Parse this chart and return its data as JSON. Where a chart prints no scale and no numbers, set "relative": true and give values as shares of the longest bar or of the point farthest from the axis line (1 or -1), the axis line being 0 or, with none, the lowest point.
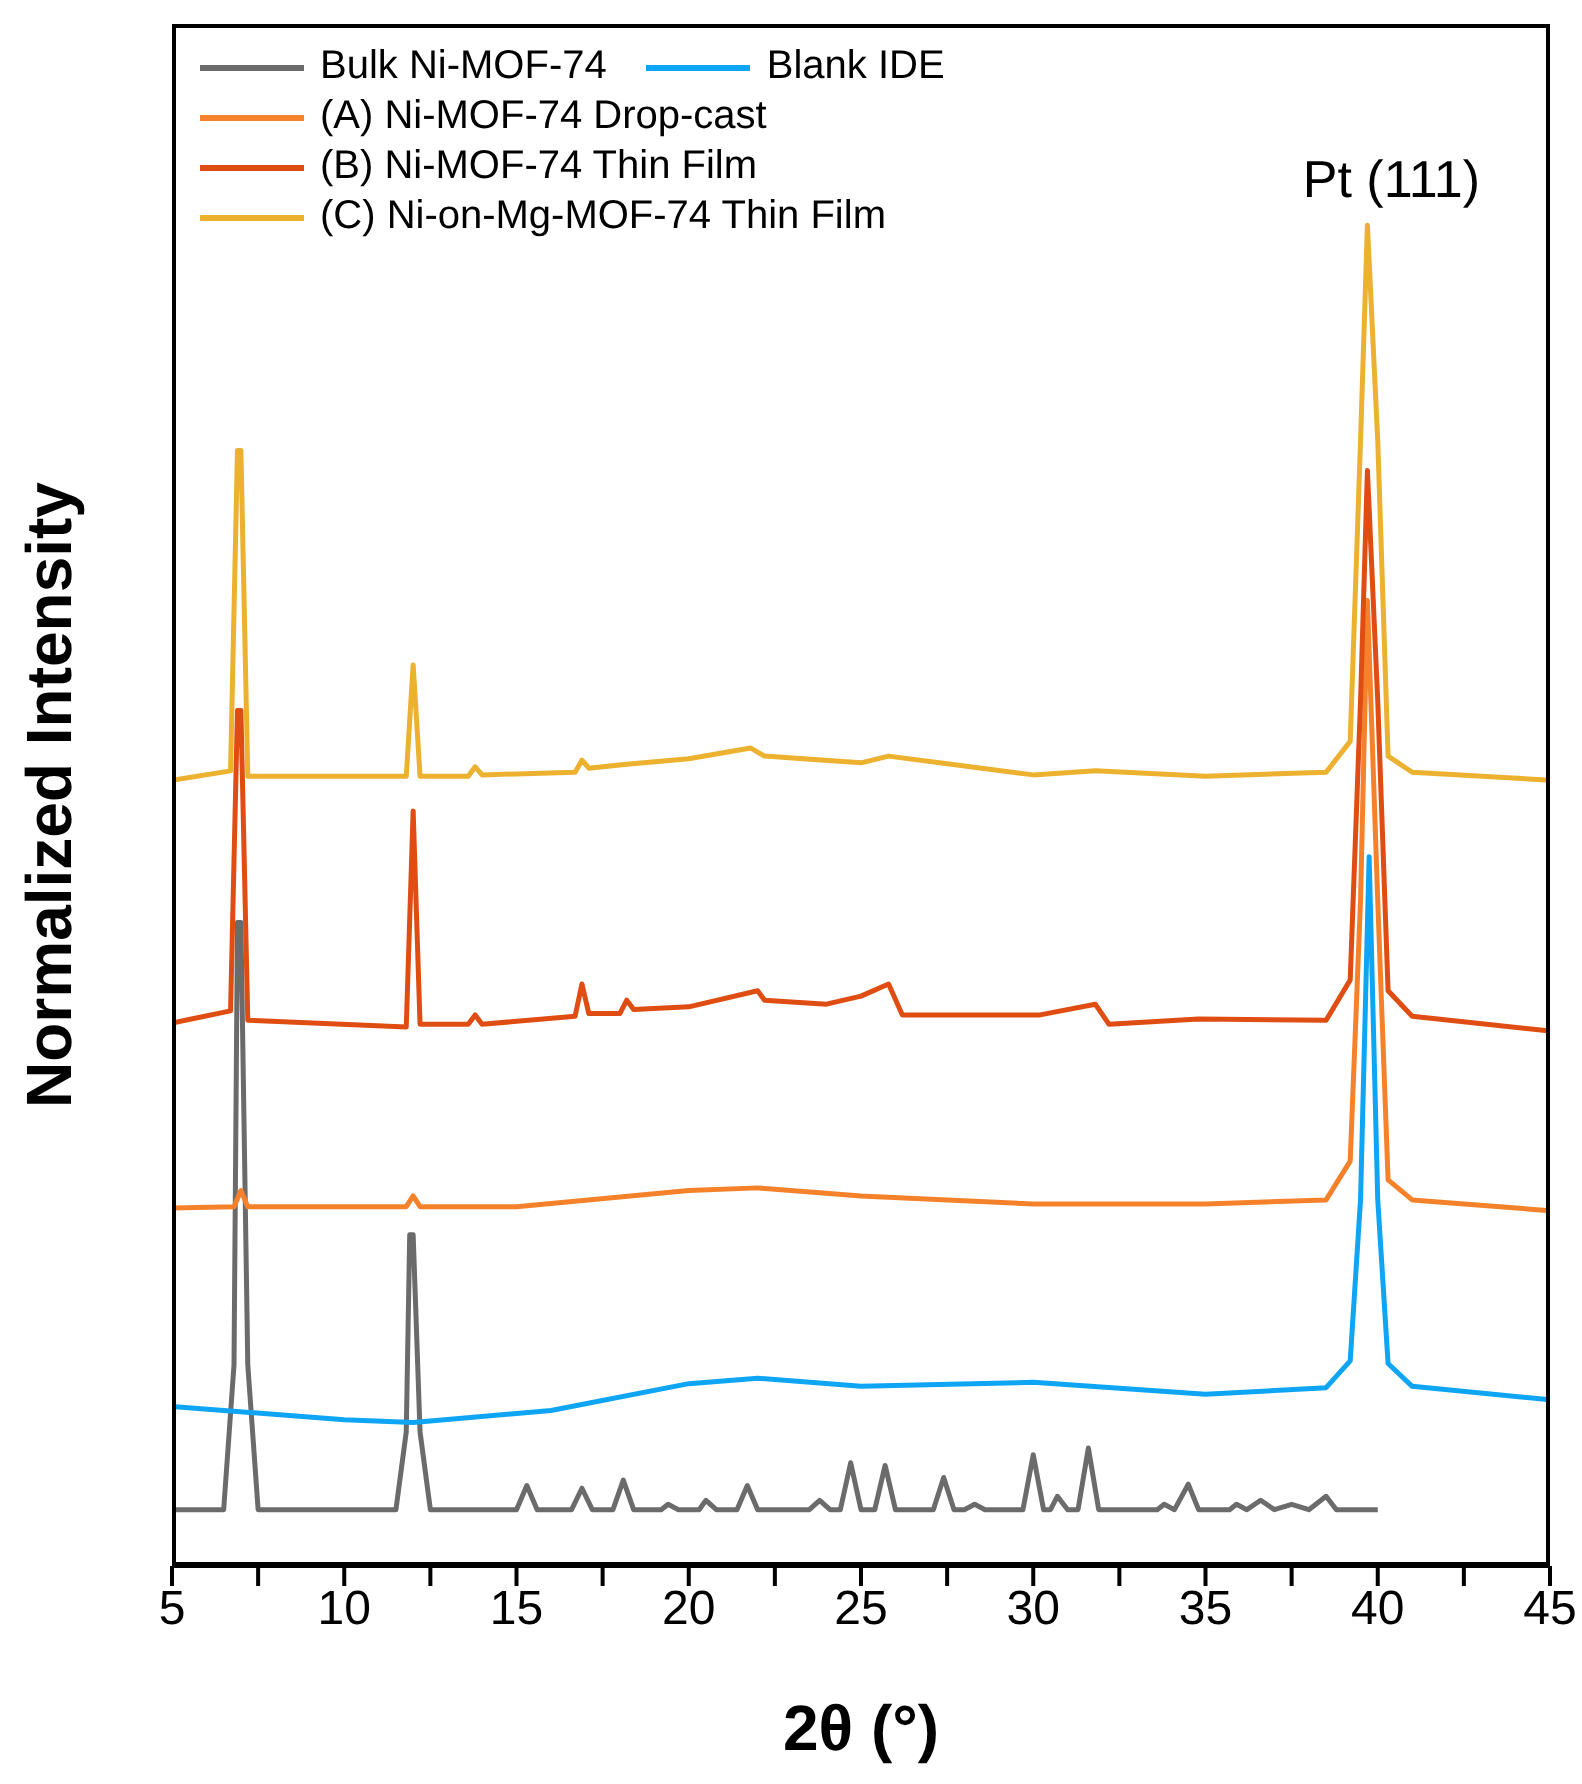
{
  "chart_data": {
    "type": "line",
    "relative": true,
    "xlabel": "2θ (°)",
    "ylabel": "Normalized Intensity",
    "xlim": [
      5,
      45
    ],
    "xticks": [
      5,
      {
        "value": 7.5,
        "label": null
      },
      10,
      {
        "value": 12.5,
        "label": null
      },
      15,
      {
        "value": 17.5,
        "label": null
      },
      20,
      {
        "value": 22.5,
        "label": null
      },
      25,
      {
        "value": 27.5,
        "label": null
      },
      30,
      {
        "value": 32.5,
        "label": null
      },
      35,
      {
        "value": 37.5,
        "label": null
      },
      40,
      {
        "value": 42.5,
        "label": null
      },
      45
    ],
    "legend": "top left",
    "marker": "none",
    "line_style": "solid",
    "annotations": [
      {
        "text": "Pt (111)",
        "x": 39.7,
        "y": 1
      }
    ],
    "series": [
      {
        "name": "Bulk Ni-MOF-74",
        "color": "#6b6b6b",
        "x": [
          5,
          6.5,
          6.8,
          6.9,
          7.0,
          7.2,
          7.5,
          11.5,
          11.8,
          11.9,
          12.0,
          12.2,
          12.5,
          15.0,
          15.3,
          15.6,
          16.6,
          16.9,
          17.2,
          17.8,
          18.1,
          18.4,
          19.2,
          19.4,
          19.7,
          20.3,
          20.5,
          20.8,
          21.4,
          21.7,
          22.0,
          23.5,
          23.8,
          24.1,
          24.4,
          24.7,
          25.0,
          25.4,
          25.7,
          26.0,
          27.1,
          27.4,
          27.7,
          28.0,
          28.3,
          28.6,
          29.7,
          30.0,
          30.3,
          30.5,
          30.7,
          31.0,
          31.3,
          31.6,
          31.9,
          33.6,
          33.8,
          34.1,
          34.5,
          34.8,
          35.7,
          35.9,
          36.2,
          36.6,
          37.0,
          37.5,
          38.0,
          38.5,
          38.8,
          40
        ],
        "values": [
          0.042,
          0.042,
          0.15,
          0.48,
          0.48,
          0.15,
          0.042,
          0.042,
          0.1,
          0.247,
          0.247,
          0.1,
          0.042,
          0.042,
          0.06,
          0.042,
          0.042,
          0.058,
          0.042,
          0.042,
          0.064,
          0.042,
          0.042,
          0.046,
          0.042,
          0.042,
          0.049,
          0.042,
          0.042,
          0.06,
          0.042,
          0.042,
          0.049,
          0.042,
          0.042,
          0.077,
          0.042,
          0.042,
          0.075,
          0.042,
          0.042,
          0.066,
          0.042,
          0.042,
          0.046,
          0.042,
          0.042,
          0.083,
          0.042,
          0.042,
          0.052,
          0.042,
          0.042,
          0.088,
          0.042,
          0.042,
          0.046,
          0.042,
          0.061,
          0.042,
          0.042,
          0.046,
          0.042,
          0.049,
          0.042,
          0.046,
          0.042,
          0.052,
          0.042,
          0.042
        ]
      },
      {
        "name": "Blank IDE",
        "color": "#0ea5f5",
        "x": [
          5,
          10,
          12,
          16,
          20,
          22,
          25,
          30,
          35,
          38.5,
          39.2,
          39.5,
          39.75,
          40,
          40.3,
          41,
          45
        ],
        "values": [
          0.119,
          0.109,
          0.107,
          0.116,
          0.136,
          0.14,
          0.134,
          0.137,
          0.128,
          0.133,
          0.153,
          0.273,
          0.529,
          0.273,
          0.151,
          0.134,
          0.124
        ]
      },
      {
        "name": "(A) Ni-MOF-74 Drop-cast",
        "color": "#f5822a",
        "x": [
          5,
          6.8,
          7.0,
          7.2,
          11.8,
          12.0,
          12.2,
          15,
          20,
          22,
          25,
          30,
          35,
          38.5,
          39.2,
          39.5,
          39.7,
          40,
          40.3,
          41,
          45
        ],
        "values": [
          0.267,
          0.268,
          0.28,
          0.268,
          0.268,
          0.276,
          0.268,
          0.268,
          0.28,
          0.282,
          0.276,
          0.27,
          0.27,
          0.273,
          0.302,
          0.496,
          0.72,
          0.496,
          0.288,
          0.273,
          0.265
        ]
      },
      {
        "name": "(B) Ni-MOF-74 Thin Film",
        "color": "#e04d12",
        "x": [
          5,
          6.7,
          6.9,
          7.0,
          7.2,
          11.8,
          12.0,
          12.2,
          13.6,
          13.8,
          14.0,
          16.7,
          16.9,
          17.1,
          18.0,
          18.2,
          18.4,
          20,
          22,
          22.2,
          24,
          25,
          25.8,
          26.2,
          30.2,
          31.8,
          32.2,
          34.8,
          38.5,
          39.2,
          39.5,
          39.7,
          40,
          40.3,
          41,
          45
        ],
        "values": [
          0.405,
          0.414,
          0.638,
          0.638,
          0.407,
          0.402,
          0.563,
          0.404,
          0.404,
          0.411,
          0.404,
          0.41,
          0.434,
          0.412,
          0.412,
          0.422,
          0.415,
          0.417,
          0.429,
          0.422,
          0.419,
          0.425,
          0.434,
          0.411,
          0.411,
          0.419,
          0.404,
          0.408,
          0.407,
          0.437,
          0.645,
          0.817,
          0.645,
          0.429,
          0.41,
          0.399
        ]
      },
      {
        "name": "(C) Ni-on-Mg-MOF-74 Thin Film",
        "color": "#ebb12f",
        "x": [
          5,
          6.7,
          6.9,
          7.0,
          7.2,
          11.8,
          12.0,
          12.2,
          13.6,
          13.8,
          14.0,
          16.7,
          16.9,
          17.1,
          18.2,
          20,
          21.8,
          22.2,
          25,
          25.8,
          30,
          31.8,
          35,
          38.5,
          39.2,
          39.5,
          39.7,
          40,
          40.3,
          41,
          45
        ],
        "values": [
          0.586,
          0.593,
          0.832,
          0.832,
          0.589,
          0.589,
          0.672,
          0.589,
          0.589,
          0.596,
          0.59,
          0.592,
          0.601,
          0.595,
          0.598,
          0.602,
          0.61,
          0.604,
          0.599,
          0.604,
          0.59,
          0.593,
          0.589,
          0.592,
          0.615,
          0.839,
          1,
          0.839,
          0.604,
          0.592,
          0.586
        ]
      }
    ]
  }
}
